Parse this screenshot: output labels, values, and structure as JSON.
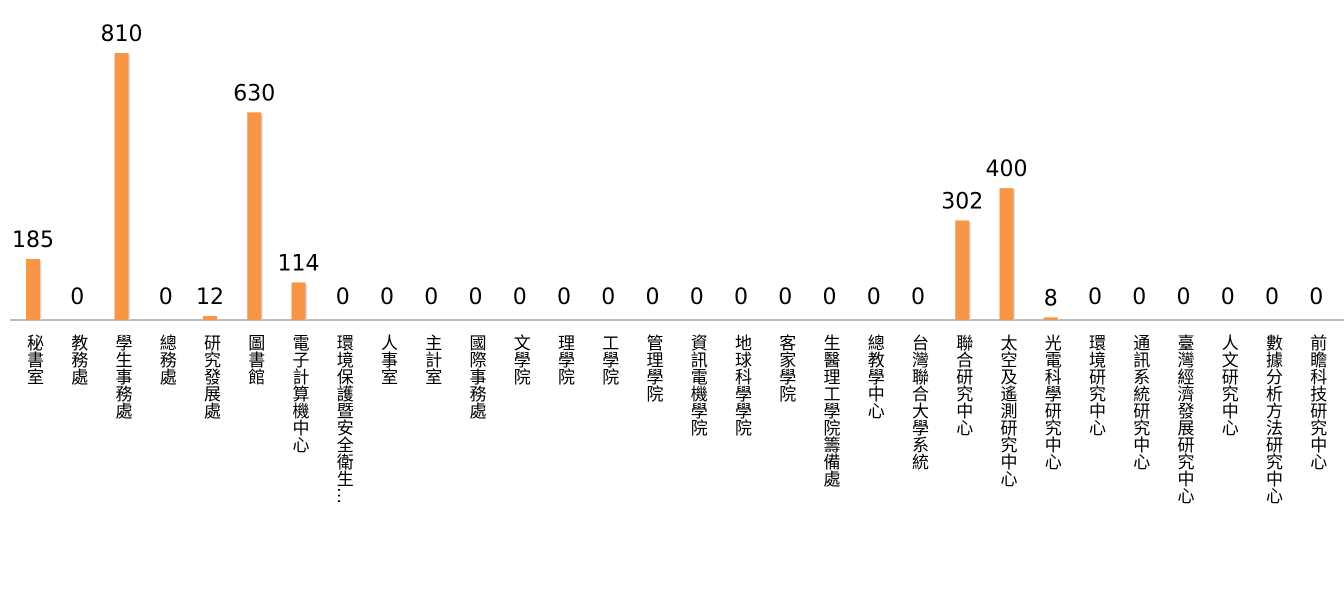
{
  "chart_data": {
    "type": "bar",
    "categories": [
      "秘書室",
      "教務處",
      "學生事務處",
      "總務處",
      "研究發展處",
      "圖書館",
      "電子計算機中心",
      "環境保護暨安全衛生…",
      "人事室",
      "主計室",
      "國際事務處",
      "文學院",
      "理學院",
      "工學院",
      "管理學院",
      "資訊電機學院",
      "地球科學學院",
      "客家學院",
      "生醫理工學院籌備處",
      "總教學中心",
      "台灣聯合大學系統",
      "聯合研究中心",
      "太空及遙測研究中心",
      "光電科學研究中心",
      "環境研究中心",
      "通訊系統研究中心",
      "臺灣經濟發展研究中心",
      "人文研究中心",
      "數據分析方法研究中心",
      "前瞻科技研究中心"
    ],
    "values": [
      185,
      0,
      810,
      0,
      12,
      630,
      114,
      0,
      0,
      0,
      0,
      0,
      0,
      0,
      0,
      0,
      0,
      0,
      0,
      0,
      0,
      302,
      400,
      8,
      0,
      0,
      0,
      0,
      0,
      0
    ],
    "value_labels": [
      "185",
      "0",
      "810",
      "0",
      "12",
      "630",
      "114",
      "0",
      "0",
      "0",
      "0",
      "0",
      "0",
      "0",
      "0",
      "0",
      "0",
      "0",
      "0",
      "0",
      "0",
      "302",
      "400",
      "8",
      "0",
      "0",
      "0",
      "0",
      "0",
      "0"
    ],
    "title": "",
    "xlabel": "",
    "ylabel": "",
    "ylim": [
      0,
      810
    ],
    "grid": false,
    "legend": "none",
    "colors": {
      "bar": "#F79646",
      "bar_shadow": "#D9D9D9",
      "axis": "#A6A6A6"
    }
  }
}
